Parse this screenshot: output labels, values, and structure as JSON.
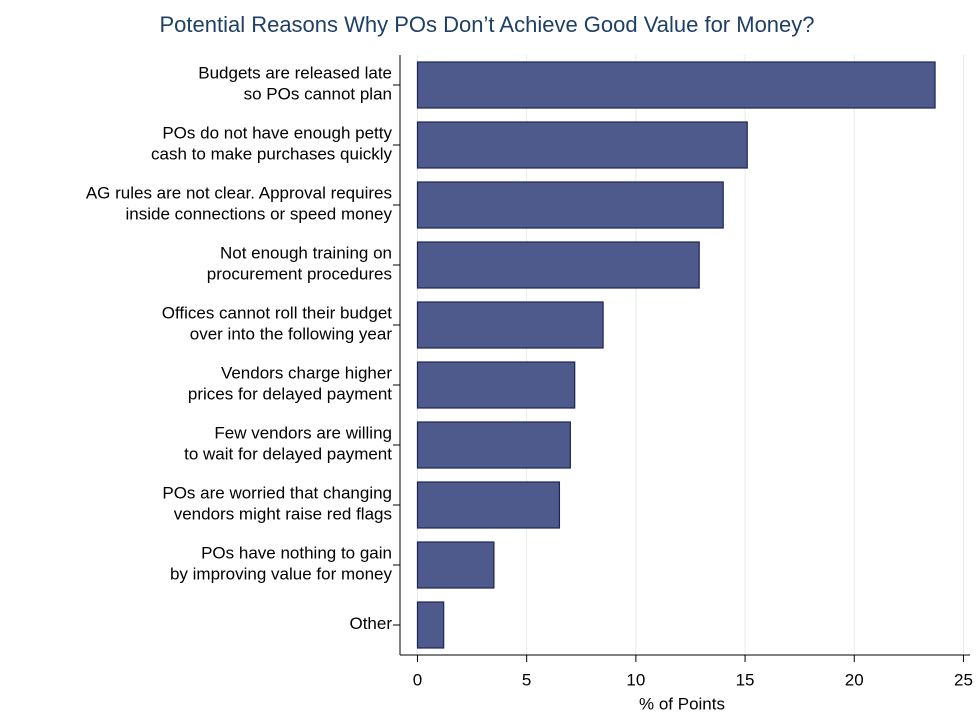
{
  "chart_data": {
    "type": "hbar",
    "title": "Potential Reasons Why POs Don’t Achieve Good Value for Money?",
    "x_label": "% of Points",
    "categories": [
      [
        "Budgets are released late",
        "so POs cannot plan"
      ],
      [
        "POs do not have enough petty",
        "cash to make purchases quickly"
      ],
      [
        "AG rules are not clear. Approval requires",
        "inside connections or speed money"
      ],
      [
        "Not enough training on",
        "procurement procedures"
      ],
      [
        "Offices cannot roll their budget",
        "over into the following year"
      ],
      [
        "Vendors charge higher",
        "prices for delayed payment"
      ],
      [
        "Few vendors are willing",
        "to wait for delayed payment"
      ],
      [
        "POs are worried that changing",
        "vendors might raise red flags"
      ],
      [
        "POs have nothing to gain",
        "by improving value for money"
      ],
      [
        "Other"
      ]
    ],
    "values": [
      23.7,
      15.1,
      14.0,
      12.9,
      8.5,
      7.2,
      7.0,
      6.5,
      3.5,
      1.2
    ],
    "color": "#4e5a8c",
    "xlim": [
      -0.8,
      25.3
    ],
    "xticks": [
      0,
      5,
      10,
      15,
      20,
      25
    ],
    "grid": true
  }
}
